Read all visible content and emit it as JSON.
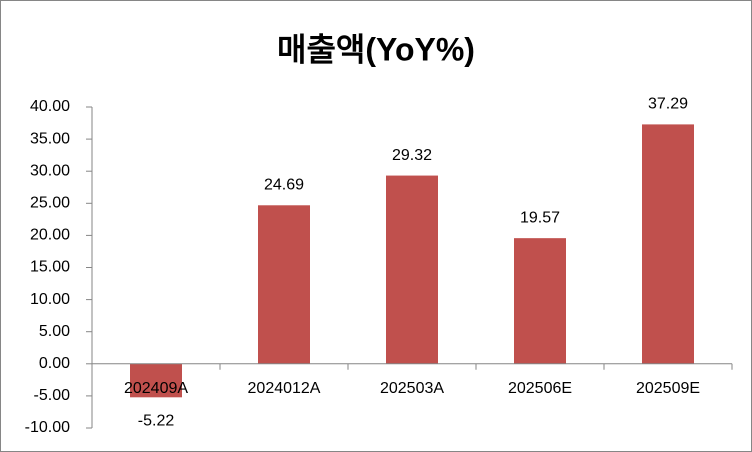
{
  "chart_data": {
    "type": "bar",
    "title": "매출액(YoY%)",
    "categories": [
      "202409A",
      "2024012A",
      "202503A",
      "202506E",
      "202509E"
    ],
    "values": [
      -5.22,
      24.69,
      29.32,
      19.57,
      37.29
    ],
    "color": "#c0504d",
    "ylim": [
      -10,
      40
    ],
    "yticks": [
      {
        "value": -10,
        "label": "-10.00"
      },
      {
        "value": -5,
        "label": "-5.00"
      },
      {
        "value": 0,
        "label": "0.00"
      },
      {
        "value": 5,
        "label": "5.00"
      },
      {
        "value": 10,
        "label": "10.00"
      },
      {
        "value": 15,
        "label": "15.00"
      },
      {
        "value": 20,
        "label": "20.00"
      },
      {
        "value": 25,
        "label": "25.00"
      },
      {
        "value": 30,
        "label": "30.00"
      },
      {
        "value": 35,
        "label": "35.00"
      },
      {
        "value": 40,
        "label": "40.00"
      }
    ],
    "grid": false
  }
}
